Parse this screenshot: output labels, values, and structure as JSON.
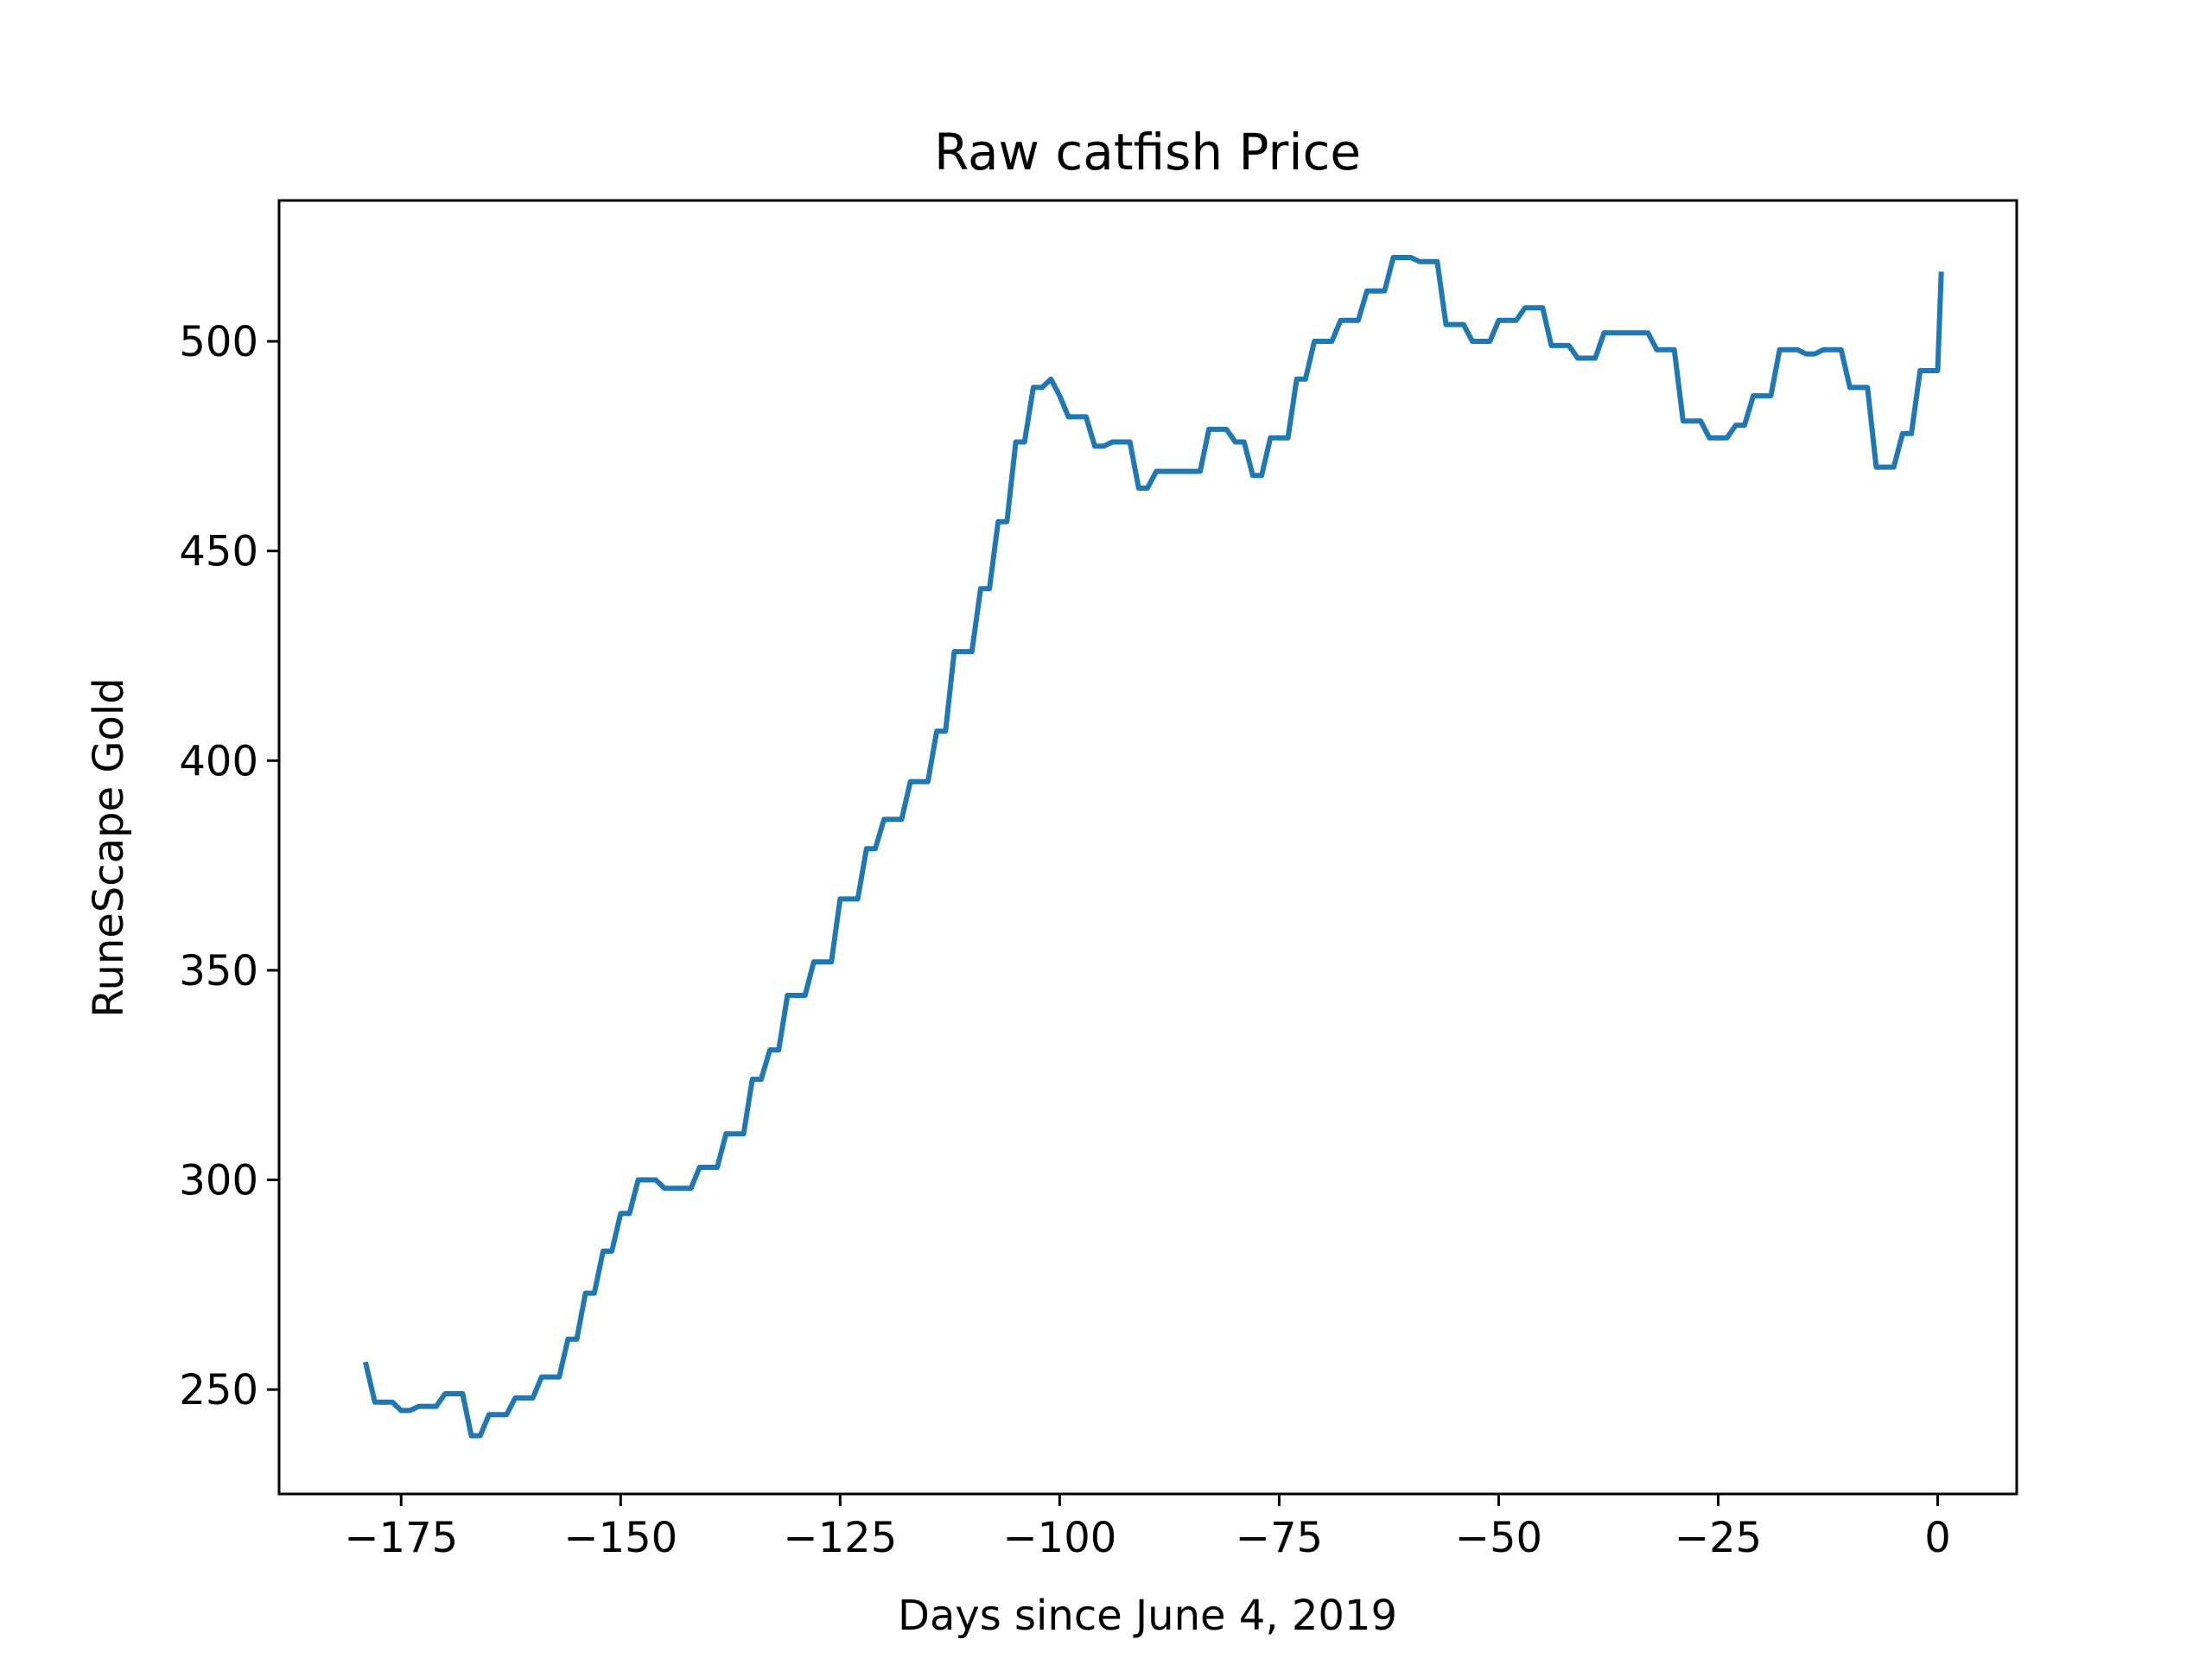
{
  "chart_data": {
    "type": "line",
    "title": "Raw catfish Price",
    "xlabel": "Days since June 4, 2019",
    "ylabel": "RuneScape Gold",
    "xlim": [
      -188.9,
      9.0
    ],
    "ylim": [
      225.1,
      533.6
    ],
    "grid": false,
    "x_ticks": [
      -175,
      -150,
      -125,
      -100,
      -75,
      -50,
      -25,
      0
    ],
    "x_tick_labels": [
      "−175",
      "−150",
      "−125",
      "−100",
      "−75",
      "−50",
      "−25",
      "0"
    ],
    "y_ticks": [
      250,
      300,
      350,
      400,
      450,
      500
    ],
    "y_tick_labels": [
      "250",
      "300",
      "350",
      "400",
      "450",
      "500"
    ],
    "series": [
      {
        "color": "#1f77b4",
        "points": [
          [
            -179,
            256
          ],
          [
            -178,
            247
          ],
          [
            -177,
            247
          ],
          [
            -176,
            247
          ],
          [
            -175,
            245
          ],
          [
            -174,
            245
          ],
          [
            -173,
            246
          ],
          [
            -172,
            246
          ],
          [
            -171,
            246
          ],
          [
            -170,
            249
          ],
          [
            -169,
            249
          ],
          [
            -168,
            249
          ],
          [
            -167,
            239
          ],
          [
            -166,
            239
          ],
          [
            -165,
            244
          ],
          [
            -164,
            244
          ],
          [
            -163,
            244
          ],
          [
            -162,
            248
          ],
          [
            -161,
            248
          ],
          [
            -160,
            248
          ],
          [
            -159,
            253
          ],
          [
            -158,
            253
          ],
          [
            -157,
            253
          ],
          [
            -156,
            262
          ],
          [
            -155,
            262
          ],
          [
            -154,
            273
          ],
          [
            -153,
            273
          ],
          [
            -152,
            283
          ],
          [
            -151,
            283
          ],
          [
            -150,
            292
          ],
          [
            -149,
            292
          ],
          [
            -148,
            300
          ],
          [
            -147,
            300
          ],
          [
            -146,
            300
          ],
          [
            -145,
            298
          ],
          [
            -144,
            298
          ],
          [
            -143,
            298
          ],
          [
            -142,
            298
          ],
          [
            -141,
            303
          ],
          [
            -140,
            303
          ],
          [
            -139,
            303
          ],
          [
            -138,
            311
          ],
          [
            -137,
            311
          ],
          [
            -136,
            311
          ],
          [
            -135,
            324
          ],
          [
            -134,
            324
          ],
          [
            -133,
            331
          ],
          [
            -132,
            331
          ],
          [
            -131,
            344
          ],
          [
            -130,
            344
          ],
          [
            -129,
            344
          ],
          [
            -128,
            352
          ],
          [
            -127,
            352
          ],
          [
            -126,
            352
          ],
          [
            -125,
            367
          ],
          [
            -124,
            367
          ],
          [
            -123,
            367
          ],
          [
            -122,
            379
          ],
          [
            -121,
            379
          ],
          [
            -120,
            386
          ],
          [
            -119,
            386
          ],
          [
            -118,
            386
          ],
          [
            -117,
            395
          ],
          [
            -116,
            395
          ],
          [
            -115,
            395
          ],
          [
            -114,
            407
          ],
          [
            -113,
            407
          ],
          [
            -112,
            426
          ],
          [
            -111,
            426
          ],
          [
            -110,
            426
          ],
          [
            -109,
            441
          ],
          [
            -108,
            441
          ],
          [
            -107,
            457
          ],
          [
            -106,
            457
          ],
          [
            -105,
            476
          ],
          [
            -104,
            476
          ],
          [
            -103,
            489
          ],
          [
            -102,
            489
          ],
          [
            -101,
            491
          ],
          [
            -100,
            487
          ],
          [
            -99,
            482
          ],
          [
            -98,
            482
          ],
          [
            -97,
            482
          ],
          [
            -96,
            475
          ],
          [
            -95,
            475
          ],
          [
            -94,
            476
          ],
          [
            -93,
            476
          ],
          [
            -92,
            476
          ],
          [
            -91,
            465
          ],
          [
            -90,
            465
          ],
          [
            -89,
            469
          ],
          [
            -88,
            469
          ],
          [
            -87,
            469
          ],
          [
            -86,
            469
          ],
          [
            -85,
            469
          ],
          [
            -84,
            469
          ],
          [
            -83,
            479
          ],
          [
            -82,
            479
          ],
          [
            -81,
            479
          ],
          [
            -80,
            476
          ],
          [
            -79,
            476
          ],
          [
            -78,
            468
          ],
          [
            -77,
            468
          ],
          [
            -76,
            477
          ],
          [
            -75,
            477
          ],
          [
            -74,
            477
          ],
          [
            -73,
            491
          ],
          [
            -72,
            491
          ],
          [
            -71,
            500
          ],
          [
            -70,
            500
          ],
          [
            -69,
            500
          ],
          [
            -68,
            505
          ],
          [
            -67,
            505
          ],
          [
            -66,
            505
          ],
          [
            -65,
            512
          ],
          [
            -64,
            512
          ],
          [
            -63,
            512
          ],
          [
            -62,
            520
          ],
          [
            -61,
            520
          ],
          [
            -60,
            520
          ],
          [
            -59,
            519
          ],
          [
            -58,
            519
          ],
          [
            -57,
            519
          ],
          [
            -56,
            504
          ],
          [
            -55,
            504
          ],
          [
            -54,
            504
          ],
          [
            -53,
            500
          ],
          [
            -52,
            500
          ],
          [
            -51,
            500
          ],
          [
            -50,
            505
          ],
          [
            -49,
            505
          ],
          [
            -48,
            505
          ],
          [
            -47,
            508
          ],
          [
            -46,
            508
          ],
          [
            -45,
            508
          ],
          [
            -44,
            499
          ],
          [
            -43,
            499
          ],
          [
            -42,
            499
          ],
          [
            -41,
            496
          ],
          [
            -40,
            496
          ],
          [
            -39,
            496
          ],
          [
            -38,
            502
          ],
          [
            -37,
            502
          ],
          [
            -36,
            502
          ],
          [
            -35,
            502
          ],
          [
            -34,
            502
          ],
          [
            -33,
            502
          ],
          [
            -32,
            498
          ],
          [
            -31,
            498
          ],
          [
            -30,
            498
          ],
          [
            -29,
            481
          ],
          [
            -28,
            481
          ],
          [
            -27,
            481
          ],
          [
            -26,
            477
          ],
          [
            -25,
            477
          ],
          [
            -24,
            477
          ],
          [
            -23,
            480
          ],
          [
            -22,
            480
          ],
          [
            -21,
            487
          ],
          [
            -20,
            487
          ],
          [
            -19,
            487
          ],
          [
            -18,
            498
          ],
          [
            -17,
            498
          ],
          [
            -16,
            498
          ],
          [
            -15,
            497
          ],
          [
            -14,
            497
          ],
          [
            -13,
            498
          ],
          [
            -12,
            498
          ],
          [
            -11,
            498
          ],
          [
            -10,
            489
          ],
          [
            -9,
            489
          ],
          [
            -8,
            489
          ],
          [
            -7,
            470
          ],
          [
            -6,
            470
          ],
          [
            -5,
            470
          ],
          [
            -4,
            478
          ],
          [
            -3,
            478
          ],
          [
            -2,
            493
          ],
          [
            -1,
            493
          ],
          [
            0,
            493
          ],
          [
            0.4,
            516
          ]
        ]
      }
    ]
  }
}
